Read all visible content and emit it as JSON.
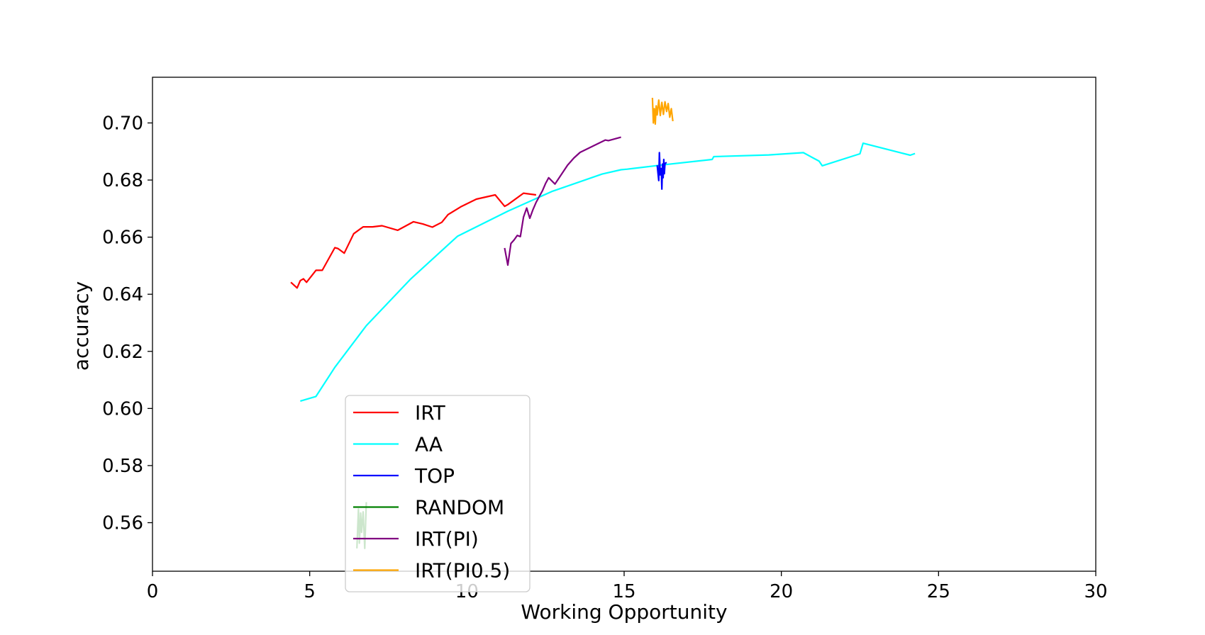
{
  "chart_data": {
    "type": "line",
    "title": "",
    "xlabel": "Working Opportunity",
    "ylabel": "accuracy",
    "xlim": [
      0,
      30
    ],
    "ylim": [
      0.543,
      0.716
    ],
    "xticks": [
      0,
      5,
      10,
      15,
      20,
      25,
      30
    ],
    "xtick_labels": [
      "0",
      "5",
      "10",
      "15",
      "20",
      "25",
      "30"
    ],
    "yticks": [
      0.56,
      0.58,
      0.6,
      0.62,
      0.64,
      0.66,
      0.68,
      0.7
    ],
    "ytick_labels": [
      "0.56",
      "0.58",
      "0.60",
      "0.62",
      "0.64",
      "0.66",
      "0.68",
      "0.70"
    ],
    "grid": false,
    "legend_position": "lower-left",
    "series": [
      {
        "name": "IRT",
        "color": "#ff0000",
        "x": [
          4.4,
          4.6,
          4.7,
          4.8,
          4.9,
          5.2,
          5.4,
          5.8,
          5.9,
          6.1,
          6.4,
          6.7,
          7.0,
          7.3,
          7.8,
          8.3,
          8.6,
          8.9,
          9.2,
          9.4,
          9.8,
          10.3,
          10.9,
          11.2,
          11.3,
          11.8,
          12.2
        ],
        "y": [
          0.6442,
          0.6422,
          0.6448,
          0.6454,
          0.6442,
          0.6484,
          0.6484,
          0.6563,
          0.656,
          0.6544,
          0.6612,
          0.6636,
          0.6636,
          0.664,
          0.6624,
          0.6654,
          0.6646,
          0.6635,
          0.6652,
          0.6679,
          0.6706,
          0.6733,
          0.6748,
          0.6708,
          0.6714,
          0.6754,
          0.6748
        ]
      },
      {
        "name": "AA",
        "color": "#00ffff",
        "x": [
          4.7,
          5.2,
          5.8,
          6.8,
          8.2,
          9.7,
          11.3,
          12.7,
          14.3,
          14.9,
          15.1,
          16.3,
          17.8,
          17.85,
          19.6,
          20.7,
          21.2,
          21.3,
          22.5,
          22.6,
          24.1,
          24.25
        ],
        "y": [
          0.6026,
          0.6042,
          0.6144,
          0.629,
          0.6452,
          0.6603,
          0.6691,
          0.676,
          0.6821,
          0.6836,
          0.6838,
          0.6854,
          0.6872,
          0.6882,
          0.6888,
          0.6896,
          0.6866,
          0.685,
          0.6892,
          0.6929,
          0.6887,
          0.6893
        ]
      },
      {
        "name": "TOP",
        "color": "#0000ff",
        "x": [
          16.05,
          16.1,
          16.12,
          16.15,
          16.18,
          16.2,
          16.22,
          16.24,
          16.26,
          16.28,
          16.3,
          16.35
        ],
        "y": [
          0.6852,
          0.6798,
          0.6896,
          0.6818,
          0.684,
          0.6768,
          0.6856,
          0.6808,
          0.6872,
          0.6822,
          0.6858,
          0.6862
        ]
      },
      {
        "name": "RANDOM",
        "color": "#008000",
        "x": [
          6.5,
          6.55,
          6.58,
          6.62,
          6.65,
          6.7,
          6.75,
          6.8
        ],
        "y": [
          0.551,
          0.5648,
          0.5528,
          0.5634,
          0.5566,
          0.5638,
          0.551,
          0.5672
        ]
      },
      {
        "name": "IRT(PI)",
        "color": "#800080",
        "x": [
          11.2,
          11.3,
          11.4,
          11.5,
          11.6,
          11.7,
          11.8,
          11.9,
          12.0,
          12.1,
          12.2,
          12.3,
          12.4,
          12.5,
          12.6,
          12.8,
          13.2,
          13.4,
          13.6,
          14.4,
          14.5,
          14.9
        ],
        "y": [
          0.6562,
          0.6502,
          0.6578,
          0.659,
          0.6606,
          0.6602,
          0.667,
          0.6702,
          0.6666,
          0.6696,
          0.6722,
          0.6742,
          0.6762,
          0.6788,
          0.6808,
          0.6786,
          0.6852,
          0.6877,
          0.6897,
          0.694,
          0.6938,
          0.695
        ]
      },
      {
        "name": "IRT(PI0.5)",
        "color": "#ffa500",
        "x": [
          15.9,
          15.93,
          15.96,
          15.99,
          16.02,
          16.05,
          16.1,
          16.15,
          16.2,
          16.25,
          16.3,
          16.35,
          16.4,
          16.45,
          16.5,
          16.55
        ],
        "y": [
          0.7088,
          0.7,
          0.705,
          0.6996,
          0.706,
          0.7028,
          0.708,
          0.7026,
          0.7072,
          0.703,
          0.7074,
          0.704,
          0.7068,
          0.702,
          0.705,
          0.7006
        ]
      }
    ]
  }
}
